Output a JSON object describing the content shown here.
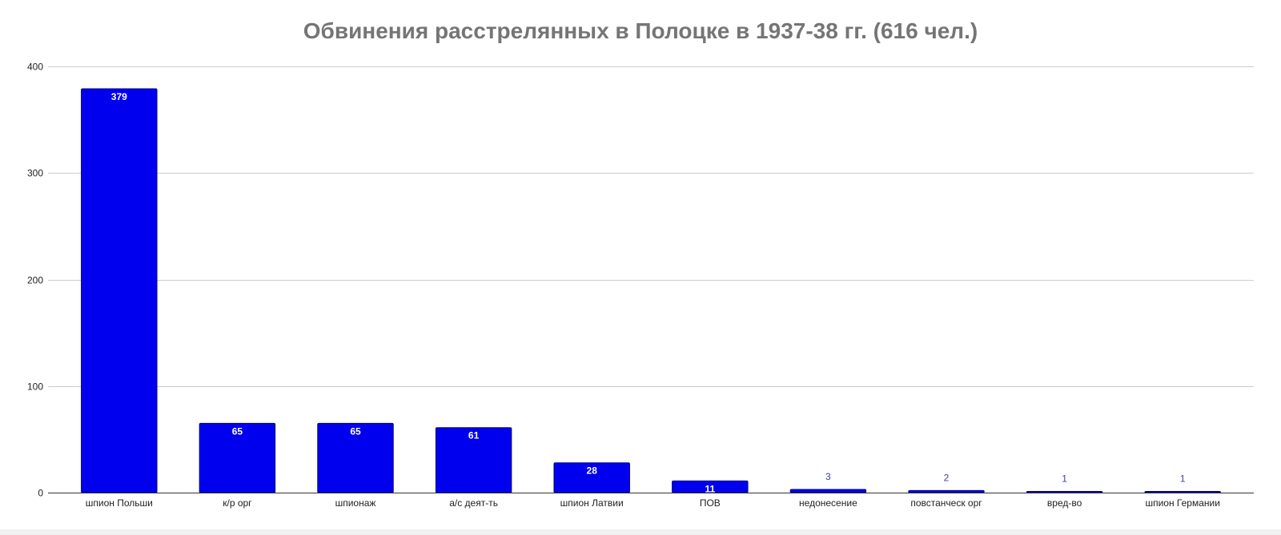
{
  "chart_data": {
    "type": "bar",
    "title": "Обвинения расстрелянных в Полоцке в 1937-38 гг. (616 чел.)",
    "xlabel": "",
    "ylabel": "",
    "categories": [
      "шпион Польши",
      "к/р орг",
      "шпионаж",
      "а/с деят-ть",
      "шпион Латвии",
      "ПОВ",
      "недонесение",
      "повстанческ орг",
      "вред-во",
      "шпион Германии"
    ],
    "values": [
      379,
      65,
      65,
      61,
      28,
      11,
      3,
      2,
      1,
      1
    ],
    "data_labels": [
      "379",
      "65",
      "65",
      "61",
      "28",
      "11",
      "3",
      "2",
      "1",
      "1"
    ],
    "ylim": [
      0,
      400
    ],
    "yticks": [
      0,
      100,
      200,
      300,
      400
    ],
    "ytick_labels": [
      "0",
      "100",
      "200",
      "300",
      "400"
    ],
    "grid": true,
    "legend": "none",
    "bar_color": "#0000ee",
    "bar_edge_color": "#00008a"
  }
}
